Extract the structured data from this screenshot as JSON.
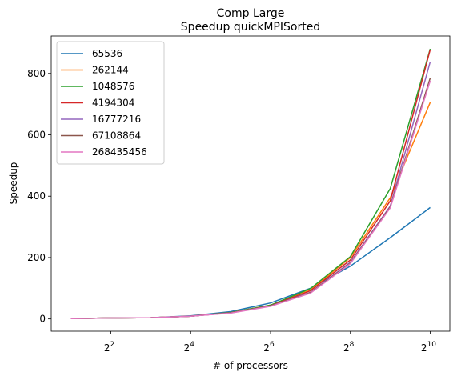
{
  "chart_data": {
    "type": "line",
    "title": "Comp Large",
    "subtitle": "Speedup quickMPISorted",
    "xlabel": "# of processors",
    "ylabel": "Speedup",
    "x_scale": "log2",
    "x": [
      2,
      4,
      8,
      16,
      32,
      64,
      128,
      256,
      512,
      1024
    ],
    "xticks": [
      {
        "value": 4,
        "base": "2",
        "exp": "2"
      },
      {
        "value": 16,
        "base": "2",
        "exp": "4"
      },
      {
        "value": 64,
        "base": "2",
        "exp": "6"
      },
      {
        "value": 256,
        "base": "2",
        "exp": "8"
      },
      {
        "value": 1024,
        "base": "2",
        "exp": "10"
      }
    ],
    "xlim": [
      1.42,
      1440
    ],
    "yticks": [
      0,
      200,
      400,
      600,
      800
    ],
    "ylim": [
      -40,
      922
    ],
    "grid": false,
    "legend_position": "top-left",
    "series": [
      {
        "name": "65536",
        "color": "#1f77b4",
        "values": [
          1,
          3,
          4,
          10,
          24,
          52,
          100,
          172,
          265,
          363
        ]
      },
      {
        "name": "262144",
        "color": "#ff7f0e",
        "values": [
          1,
          3,
          4,
          9,
          21,
          45,
          94,
          200,
          395,
          706
        ]
      },
      {
        "name": "1048576",
        "color": "#2ca02c",
        "values": [
          1,
          3,
          4,
          9,
          21,
          45,
          99,
          203,
          425,
          880
        ]
      },
      {
        "name": "4194304",
        "color": "#d62728",
        "values": [
          1,
          3,
          4,
          9,
          20,
          43,
          92,
          192,
          385,
          878
        ]
      },
      {
        "name": "16777216",
        "color": "#9467bd",
        "values": [
          1,
          3,
          4,
          9,
          20,
          42,
          87,
          185,
          368,
          838
        ]
      },
      {
        "name": "67108864",
        "color": "#8c564b",
        "values": [
          1,
          3,
          4,
          9,
          20,
          42,
          86,
          182,
          365,
          785
        ]
      },
      {
        "name": "268435456",
        "color": "#e377c2",
        "values": [
          1,
          3,
          4,
          9,
          19,
          41,
          84,
          180,
          362,
          776
        ]
      }
    ]
  }
}
